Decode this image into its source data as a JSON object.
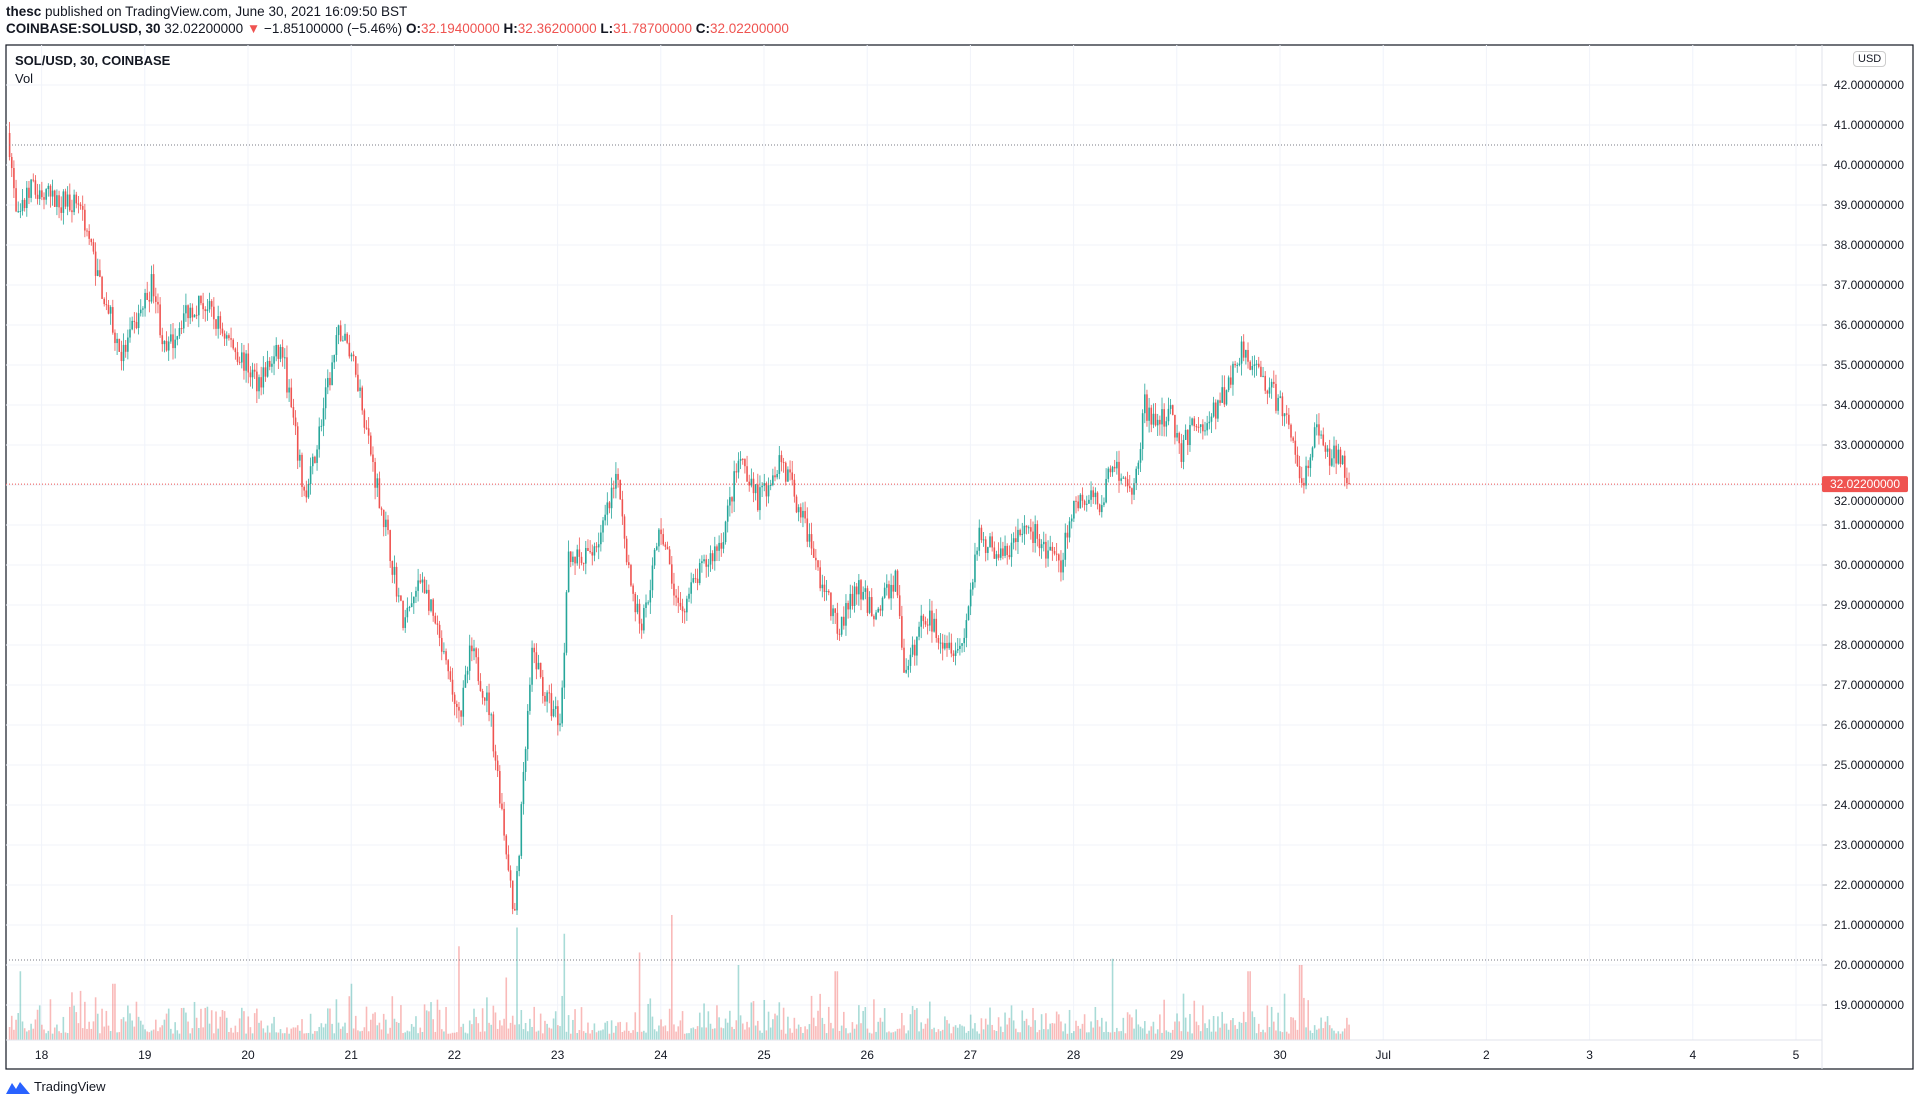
{
  "header": {
    "author": "thesc",
    "published": "published on TradingView.com, June 30, 2021 16:09:50 BST",
    "symbol": "COINBASE:SOLUSD, 30",
    "last": "32.02200000",
    "change": "−1.85100000 (−5.46%)",
    "o_label": "O:",
    "o": "32.19400000",
    "h_label": "H:",
    "h": "32.36200000",
    "l_label": "L:",
    "l": "31.78700000",
    "c_label": "C:",
    "c": "32.02200000"
  },
  "legend": {
    "title": "SOL/USD, 30, COINBASE",
    "vol": "Vol"
  },
  "currency_button": "USD",
  "footer": {
    "brand": "TradingView"
  },
  "colors": {
    "up": "#26a69a",
    "down": "#ef5350",
    "grid": "#f0f3fa",
    "axis": "#131722"
  },
  "chart_data": {
    "type": "candlestick",
    "interval": "30 min",
    "title": "SOL/USD, 30, COINBASE",
    "x_unit": "day of June 2021",
    "xlim": [
      17.6,
      35.4
    ],
    "ylim": [
      18.2,
      42.5
    ],
    "y_ticks": [
      "42.00000000",
      "41.00000000",
      "40.00000000",
      "39.00000000",
      "38.00000000",
      "37.00000000",
      "36.00000000",
      "35.00000000",
      "34.00000000",
      "33.00000000",
      "32.00000000",
      "31.00000000",
      "30.00000000",
      "29.00000000",
      "28.00000000",
      "27.00000000",
      "26.00000000",
      "25.00000000",
      "24.00000000",
      "23.00000000",
      "22.00000000",
      "21.00000000",
      "20.00000000",
      "19.00000000"
    ],
    "x_ticks": [
      "18",
      "19",
      "20",
      "21",
      "22",
      "23",
      "24",
      "25",
      "26",
      "27",
      "28",
      "29",
      "30",
      "Jul",
      "2",
      "3",
      "4",
      "5"
    ],
    "last_price_label": "32.02200000",
    "last_price": 32.022,
    "high_marker": 40.5,
    "grid": true,
    "price_path": [
      [
        17.69,
        40.5
      ],
      [
        17.76,
        38.5
      ],
      [
        17.89,
        39.4
      ],
      [
        18.13,
        39.1
      ],
      [
        18.37,
        39.1
      ],
      [
        18.55,
        37.2
      ],
      [
        18.78,
        35.2
      ],
      [
        19.08,
        37.1
      ],
      [
        19.2,
        35.2
      ],
      [
        19.38,
        36.3
      ],
      [
        19.55,
        36.6
      ],
      [
        19.85,
        35.5
      ],
      [
        20.09,
        34.6
      ],
      [
        20.33,
        35.4
      ],
      [
        20.5,
        32.5
      ],
      [
        20.56,
        31.6
      ],
      [
        20.74,
        34.0
      ],
      [
        20.89,
        35.9
      ],
      [
        21.04,
        35.0
      ],
      [
        21.21,
        32.5
      ],
      [
        21.33,
        31.0
      ],
      [
        21.51,
        28.5
      ],
      [
        21.69,
        29.7
      ],
      [
        21.87,
        27.9
      ],
      [
        22.05,
        26.1
      ],
      [
        22.16,
        27.9
      ],
      [
        22.34,
        26.4
      ],
      [
        22.46,
        23.9
      ],
      [
        22.58,
        21.0
      ],
      [
        22.7,
        25.8
      ],
      [
        22.76,
        27.9
      ],
      [
        22.88,
        26.7
      ],
      [
        23.03,
        26.1
      ],
      [
        23.11,
        30.4
      ],
      [
        23.23,
        30.0
      ],
      [
        23.41,
        30.7
      ],
      [
        23.59,
        32.2
      ],
      [
        23.71,
        29.4
      ],
      [
        23.82,
        28.5
      ],
      [
        24.0,
        31.0
      ],
      [
        24.18,
        28.8
      ],
      [
        24.36,
        29.7
      ],
      [
        24.6,
        30.7
      ],
      [
        24.77,
        32.8
      ],
      [
        24.95,
        31.6
      ],
      [
        25.16,
        32.7
      ],
      [
        25.36,
        31.3
      ],
      [
        25.54,
        29.7
      ],
      [
        25.72,
        28.4
      ],
      [
        25.9,
        29.4
      ],
      [
        26.08,
        28.8
      ],
      [
        26.28,
        29.7
      ],
      [
        26.37,
        27.1
      ],
      [
        26.55,
        28.8
      ],
      [
        26.73,
        28.2
      ],
      [
        26.91,
        27.9
      ],
      [
        27.09,
        30.7
      ],
      [
        27.32,
        30.2
      ],
      [
        27.56,
        31.0
      ],
      [
        27.86,
        29.9
      ],
      [
        28.01,
        31.6
      ],
      [
        28.27,
        31.6
      ],
      [
        28.39,
        32.7
      ],
      [
        28.57,
        31.6
      ],
      [
        28.69,
        34.0
      ],
      [
        28.81,
        33.4
      ],
      [
        28.93,
        34.0
      ],
      [
        29.04,
        32.8
      ],
      [
        29.16,
        33.6
      ],
      [
        29.28,
        33.4
      ],
      [
        29.46,
        34.3
      ],
      [
        29.64,
        35.5
      ],
      [
        29.76,
        34.9
      ],
      [
        29.93,
        34.3
      ],
      [
        30.11,
        33.4
      ],
      [
        30.23,
        32.0
      ],
      [
        30.35,
        33.4
      ],
      [
        30.47,
        32.6
      ],
      [
        30.59,
        32.8
      ],
      [
        30.67,
        32.022
      ]
    ],
    "volume_spikes_relative": [
      [
        17.8,
        0.55
      ],
      [
        18.7,
        0.45
      ],
      [
        21.0,
        0.45
      ],
      [
        22.05,
        0.75
      ],
      [
        22.5,
        0.5
      ],
      [
        22.6,
        0.9
      ],
      [
        23.07,
        0.85
      ],
      [
        23.8,
        0.7
      ],
      [
        24.1,
        1.0
      ],
      [
        24.75,
        0.6
      ],
      [
        25.7,
        0.55
      ],
      [
        28.37,
        0.65
      ],
      [
        29.7,
        0.55
      ],
      [
        30.2,
        0.6
      ]
    ]
  }
}
